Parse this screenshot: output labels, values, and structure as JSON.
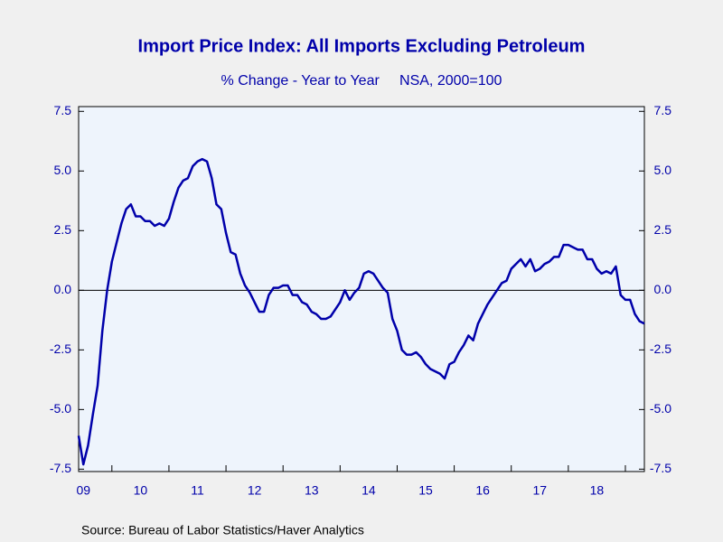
{
  "chart_data": {
    "type": "line",
    "title": "Import Price Index: All Imports Excluding Petroleum",
    "subtitle": "% Change - Year to Year     NSA, 2000=100",
    "source": "Source:  Bureau of Labor Statistics/Haver Analytics",
    "x": [
      2009.417,
      2009.5,
      2009.583,
      2009.667,
      2009.75,
      2009.833,
      2009.917,
      2010,
      2010.083,
      2010.167,
      2010.25,
      2010.333,
      2010.417,
      2010.5,
      2010.583,
      2010.667,
      2010.75,
      2010.833,
      2010.917,
      2011,
      2011.083,
      2011.167,
      2011.25,
      2011.333,
      2011.417,
      2011.5,
      2011.583,
      2011.667,
      2011.75,
      2011.833,
      2011.917,
      2012,
      2012.083,
      2012.167,
      2012.25,
      2012.333,
      2012.417,
      2012.5,
      2012.583,
      2012.667,
      2012.75,
      2012.833,
      2012.917,
      2013,
      2013.083,
      2013.167,
      2013.25,
      2013.333,
      2013.417,
      2013.5,
      2013.583,
      2013.667,
      2013.75,
      2013.833,
      2013.917,
      2014,
      2014.083,
      2014.167,
      2014.25,
      2014.333,
      2014.417,
      2014.5,
      2014.583,
      2014.667,
      2014.75,
      2014.833,
      2014.917,
      2015,
      2015.083,
      2015.167,
      2015.25,
      2015.333,
      2015.417,
      2015.5,
      2015.583,
      2015.667,
      2015.75,
      2015.833,
      2015.917,
      2016,
      2016.083,
      2016.167,
      2016.25,
      2016.333,
      2016.417,
      2016.5,
      2016.583,
      2016.667,
      2016.75,
      2016.833,
      2016.917,
      2017,
      2017.083,
      2017.167,
      2017.25,
      2017.333,
      2017.417,
      2017.5,
      2017.583,
      2017.667,
      2017.75,
      2017.833,
      2017.917,
      2018,
      2018.083,
      2018.167,
      2018.25,
      2018.333,
      2018.417,
      2018.5,
      2018.583,
      2018.667,
      2018.75,
      2018.833,
      2018.917,
      2019,
      2019.083,
      2019.167,
      2019.25,
      2019.333
    ],
    "series": [
      {
        "color": "#0000aa",
        "values": [
          -6.1,
          -7.3,
          -6.5,
          -5.2,
          -4.0,
          -1.7,
          0.0,
          1.2,
          2.0,
          2.8,
          3.4,
          3.6,
          3.1,
          3.1,
          2.9,
          2.9,
          2.7,
          2.8,
          2.7,
          3.0,
          3.7,
          4.3,
          4.6,
          4.7,
          5.2,
          5.4,
          5.5,
          5.4,
          4.7,
          3.6,
          3.4,
          2.4,
          1.6,
          1.5,
          0.7,
          0.2,
          -0.1,
          -0.5,
          -0.9,
          -0.9,
          -0.2,
          0.1,
          0.1,
          0.2,
          0.2,
          -0.2,
          -0.2,
          -0.5,
          -0.6,
          -0.9,
          -1.0,
          -1.2,
          -1.2,
          -1.1,
          -0.8,
          -0.5,
          0.0,
          -0.4,
          -0.1,
          0.1,
          0.7,
          0.8,
          0.7,
          0.4,
          0.1,
          -0.1,
          -1.2,
          -1.7,
          -2.5,
          -2.7,
          -2.7,
          -2.6,
          -2.8,
          -3.1,
          -3.3,
          -3.4,
          -3.5,
          -3.7,
          -3.1,
          -3.0,
          -2.6,
          -2.3,
          -1.9,
          -2.1,
          -1.4,
          -1.0,
          -0.6,
          -0.3,
          0.0,
          0.3,
          0.4,
          0.9,
          1.1,
          1.3,
          1.0,
          1.3,
          0.8,
          0.9,
          1.1,
          1.2,
          1.4,
          1.4,
          1.9,
          1.9,
          1.8,
          1.7,
          1.7,
          1.3,
          1.3,
          0.9,
          0.7,
          0.8,
          0.7,
          1.0,
          -0.2,
          -0.4,
          -0.4,
          -1.0,
          -1.3,
          -1.4
        ]
      }
    ],
    "xlim": [
      2009.417,
      2019.333
    ],
    "xticks": [
      2010,
      2011,
      2012,
      2013,
      2014,
      2015,
      2016,
      2017,
      2018,
      2019
    ],
    "xtick_labels": [
      {
        "value": 2009.5,
        "label": "09"
      },
      {
        "value": 2010.5,
        "label": "10"
      },
      {
        "value": 2011.5,
        "label": "11"
      },
      {
        "value": 2012.5,
        "label": "12"
      },
      {
        "value": 2013.5,
        "label": "13"
      },
      {
        "value": 2014.5,
        "label": "14"
      },
      {
        "value": 2015.5,
        "label": "15"
      },
      {
        "value": 2016.5,
        "label": "16"
      },
      {
        "value": 2017.5,
        "label": "17"
      },
      {
        "value": 2018.5,
        "label": "18"
      }
    ],
    "ylim": [
      -7.6,
      7.7
    ],
    "yticks": [
      7.5,
      {
        "value": 5,
        "label": "5.0"
      },
      2.5,
      {
        "value": 0,
        "label": "0.0"
      },
      -2.5,
      {
        "value": -5,
        "label": "-5.0"
      },
      -7.5
    ],
    "y2lim": [
      -7.6,
      7.7
    ],
    "y2ticks": [
      7.5,
      {
        "value": 5,
        "label": "5.0"
      },
      2.5,
      {
        "value": 0,
        "label": "0.0"
      },
      -2.5,
      {
        "value": -5,
        "label": "-5.0"
      },
      -7.5
    ],
    "zero_line": true
  }
}
